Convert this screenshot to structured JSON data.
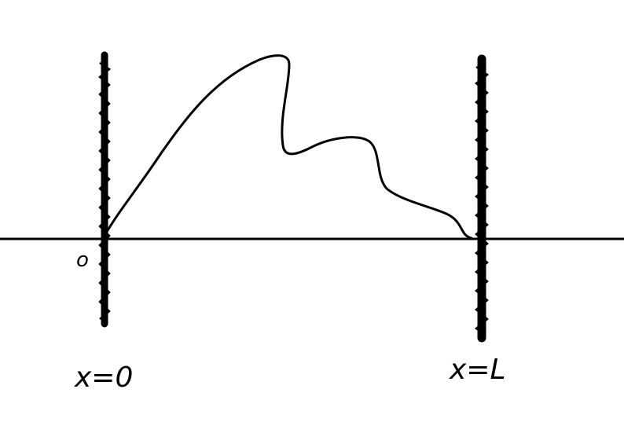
{
  "diagram": {
    "origin_label": "o",
    "left_wall_label": "x=0",
    "right_wall_label": "x=L",
    "stroke_color": "#000000",
    "background_color": "#ffffff"
  }
}
